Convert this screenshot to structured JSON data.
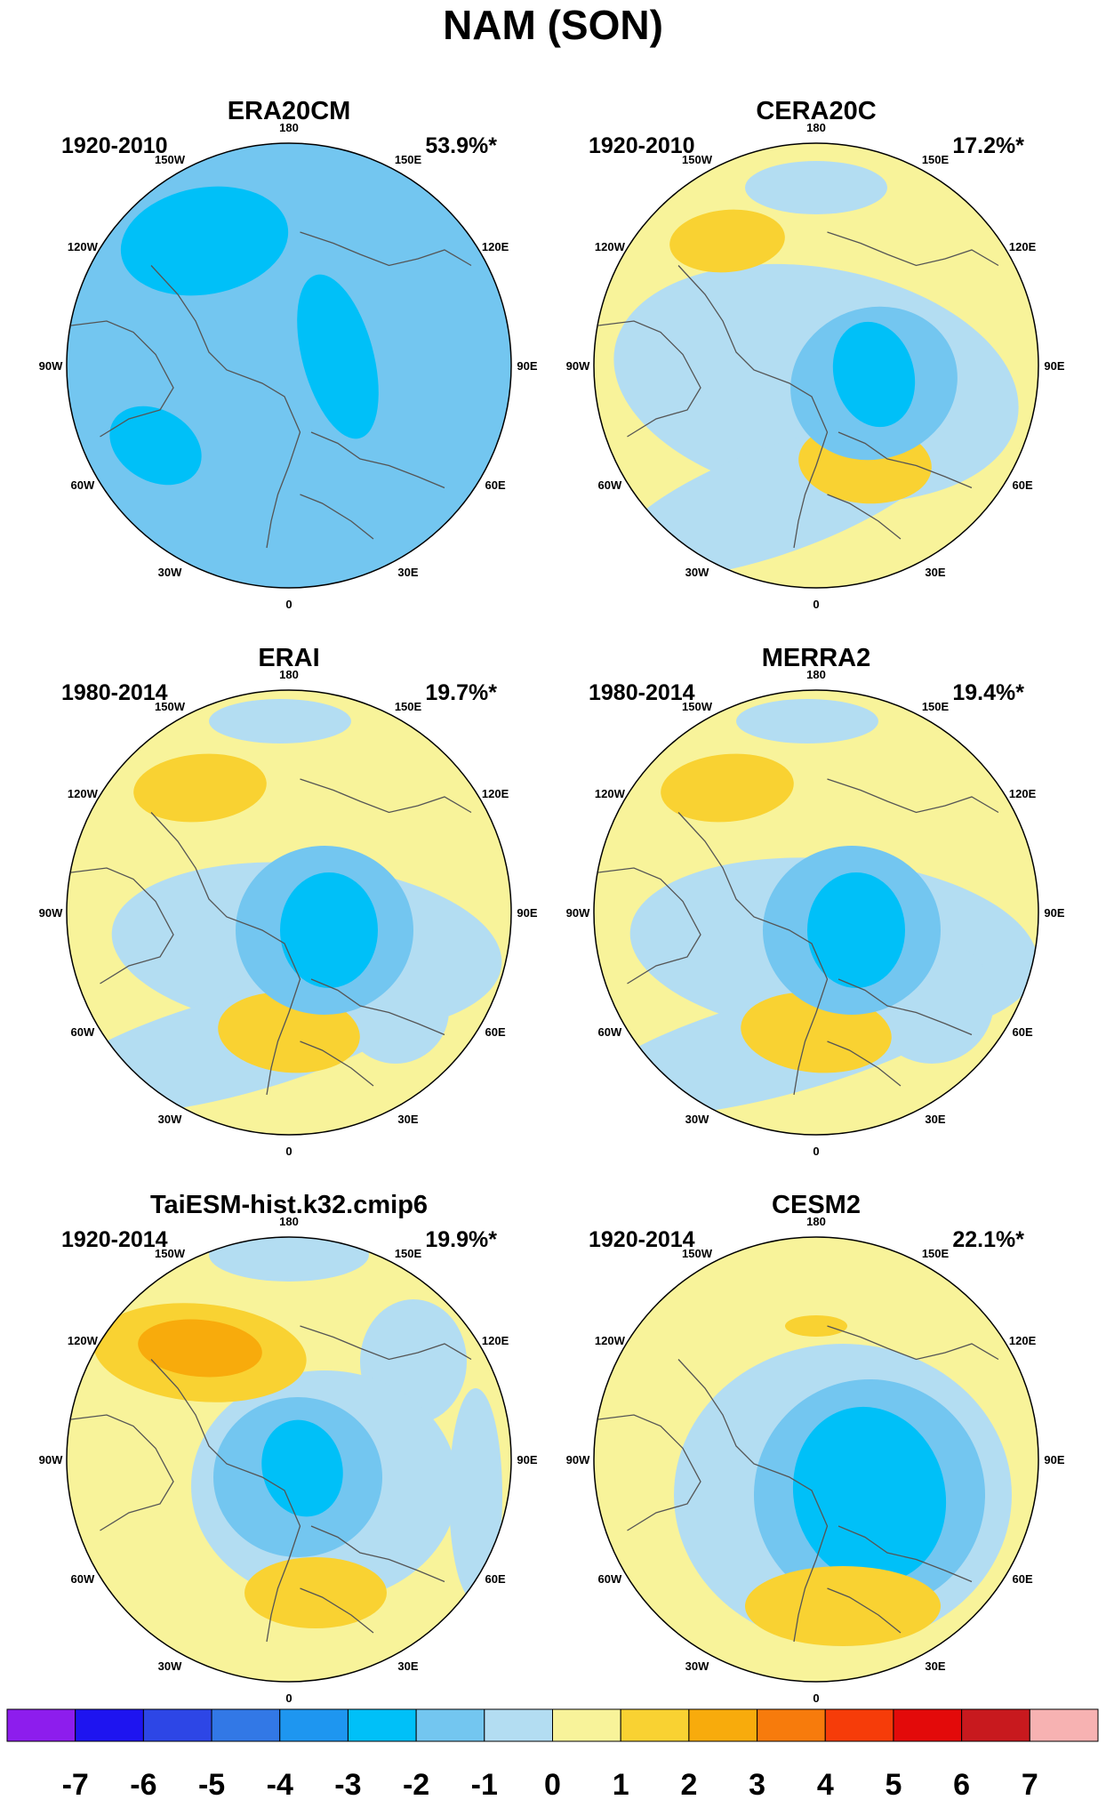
{
  "figure": {
    "title": "NAM (SON)"
  },
  "panels": [
    {
      "title": "ERA20CM",
      "period": "1920-2010",
      "variance": "53.9%*"
    },
    {
      "title": "CERA20C",
      "period": "1920-2010",
      "variance": "17.2%*"
    },
    {
      "title": "ERAI",
      "period": "1980-2014",
      "variance": "19.7%*"
    },
    {
      "title": "MERRA2",
      "period": "1980-2014",
      "variance": "19.4%*"
    },
    {
      "title": "TaiESM-hist.k32.cmip6",
      "period": "1920-2014",
      "variance": "19.9%*"
    },
    {
      "title": "CESM2",
      "period": "1920-2014",
      "variance": "22.1%*"
    }
  ],
  "longitude_labels": [
    "180",
    "150E",
    "120E",
    "90E",
    "60E",
    "30E",
    "0",
    "30W",
    "60W",
    "90W",
    "120W",
    "150W"
  ],
  "colorbar": {
    "ticks": [
      "-7",
      "-6",
      "-5",
      "-4",
      "-3",
      "-2",
      "-1",
      "0",
      "1",
      "2",
      "3",
      "4",
      "5",
      "6",
      "7"
    ],
    "colors": [
      "#8d1ded",
      "#1e14f0",
      "#2d46e6",
      "#3278e6",
      "#1e96f0",
      "#00c0f8",
      "#73c6f0",
      "#b3ddf2",
      "#f8f39a",
      "#f9d232",
      "#f8ab0c",
      "#f77b0c",
      "#f63c09",
      "#e30a0a",
      "#c8191e",
      "#f7b2b2"
    ]
  }
}
